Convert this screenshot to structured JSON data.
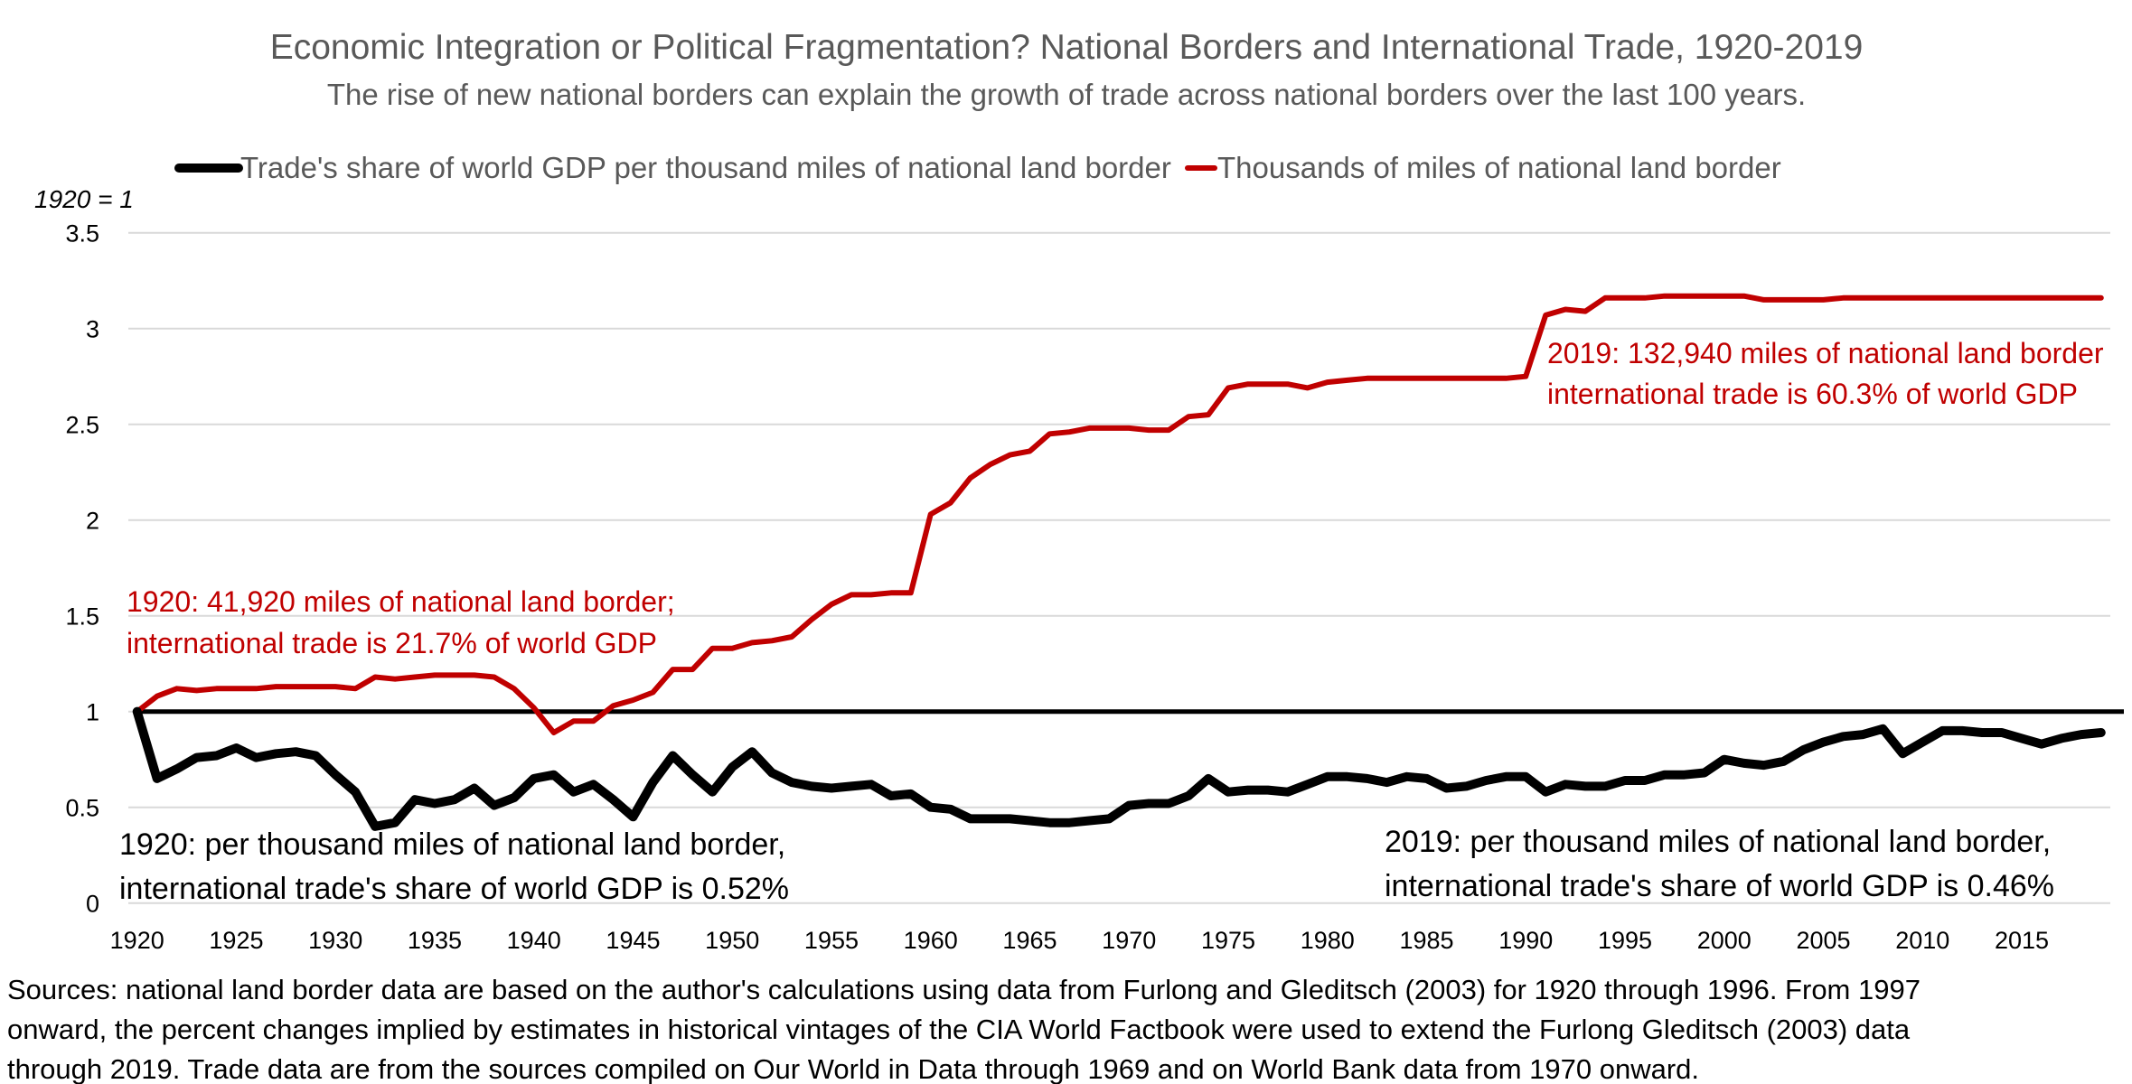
{
  "chart_data": {
    "type": "line",
    "title": "Economic Integration or Political Fragmentation? National Borders and International Trade, 1920-2019",
    "subtitle": "The rise of new national borders can explain the growth of trade across national borders over the last 100 years.",
    "ylabel": "1920 = 1",
    "xlabel": "",
    "ylim": [
      0,
      3.5
    ],
    "xlim": [
      1920,
      2019
    ],
    "y_ticks": [
      "0",
      "0.5",
      "1",
      "1.5",
      "2",
      "2.5",
      "3",
      "3.5"
    ],
    "y_tick_values": [
      0,
      0.5,
      1,
      1.5,
      2,
      2.5,
      3,
      3.5
    ],
    "x_ticks": [
      "1920",
      "1925",
      "1930",
      "1935",
      "1940",
      "1945",
      "1950",
      "1955",
      "1960",
      "1965",
      "1970",
      "1975",
      "1980",
      "1985",
      "1990",
      "1995",
      "2000",
      "2005",
      "2010",
      "2015"
    ],
    "grid": true,
    "legend_position": "top",
    "reference_line": {
      "value": 1,
      "color": "#000000"
    },
    "x": [
      1920,
      1921,
      1922,
      1923,
      1924,
      1925,
      1926,
      1927,
      1928,
      1929,
      1930,
      1931,
      1932,
      1933,
      1934,
      1935,
      1936,
      1937,
      1938,
      1939,
      1940,
      1941,
      1942,
      1943,
      1944,
      1945,
      1946,
      1947,
      1948,
      1949,
      1950,
      1951,
      1952,
      1953,
      1954,
      1955,
      1956,
      1957,
      1958,
      1959,
      1960,
      1961,
      1962,
      1963,
      1964,
      1965,
      1966,
      1967,
      1968,
      1969,
      1970,
      1971,
      1972,
      1973,
      1974,
      1975,
      1976,
      1977,
      1978,
      1979,
      1980,
      1981,
      1982,
      1983,
      1984,
      1985,
      1986,
      1987,
      1988,
      1989,
      1990,
      1991,
      1992,
      1993,
      1994,
      1995,
      1996,
      1997,
      1998,
      1999,
      2000,
      2001,
      2002,
      2003,
      2004,
      2005,
      2006,
      2007,
      2008,
      2009,
      2010,
      2011,
      2012,
      2013,
      2014,
      2015,
      2016,
      2017,
      2018,
      2019
    ],
    "series": [
      {
        "name": "Trade's share of world GDP per thousand miles of national land border",
        "color": "#000000",
        "values": [
          1.0,
          0.65,
          0.7,
          0.76,
          0.77,
          0.81,
          0.76,
          0.78,
          0.79,
          0.77,
          0.67,
          0.58,
          0.4,
          0.42,
          0.54,
          0.52,
          0.54,
          0.6,
          0.51,
          0.55,
          0.65,
          0.67,
          0.58,
          0.62,
          0.54,
          0.45,
          0.63,
          0.77,
          0.67,
          0.58,
          0.71,
          0.79,
          0.68,
          0.63,
          0.61,
          0.6,
          0.61,
          0.62,
          0.56,
          0.57,
          0.5,
          0.49,
          0.44,
          0.44,
          0.44,
          0.43,
          0.42,
          0.42,
          0.43,
          0.44,
          0.51,
          0.52,
          0.52,
          0.56,
          0.65,
          0.58,
          0.59,
          0.59,
          0.58,
          0.62,
          0.66,
          0.66,
          0.65,
          0.63,
          0.66,
          0.65,
          0.6,
          0.61,
          0.64,
          0.66,
          0.66,
          0.58,
          0.62,
          0.61,
          0.61,
          0.64,
          0.64,
          0.67,
          0.67,
          0.68,
          0.75,
          0.73,
          0.72,
          0.74,
          0.8,
          0.84,
          0.87,
          0.88,
          0.91,
          0.78,
          0.84,
          0.9,
          0.9,
          0.89,
          0.89,
          0.86,
          0.83,
          0.86,
          0.88,
          0.89
        ]
      },
      {
        "name": "Thousands of miles of national land border",
        "color": "#c00000",
        "values": [
          1.0,
          1.08,
          1.12,
          1.11,
          1.12,
          1.12,
          1.12,
          1.13,
          1.13,
          1.13,
          1.13,
          1.12,
          1.18,
          1.17,
          1.18,
          1.19,
          1.19,
          1.19,
          1.18,
          1.12,
          1.02,
          0.89,
          0.95,
          0.95,
          1.03,
          1.06,
          1.1,
          1.22,
          1.22,
          1.33,
          1.33,
          1.36,
          1.37,
          1.39,
          1.48,
          1.56,
          1.61,
          1.61,
          1.62,
          1.62,
          2.03,
          2.09,
          2.22,
          2.29,
          2.34,
          2.36,
          2.45,
          2.46,
          2.48,
          2.48,
          2.48,
          2.47,
          2.47,
          2.54,
          2.55,
          2.69,
          2.71,
          2.71,
          2.71,
          2.69,
          2.72,
          2.73,
          2.74,
          2.74,
          2.74,
          2.74,
          2.74,
          2.74,
          2.74,
          2.74,
          2.75,
          3.07,
          3.1,
          3.09,
          3.16,
          3.16,
          3.16,
          3.17,
          3.17,
          3.17,
          3.17,
          3.17,
          3.15,
          3.15,
          3.15,
          3.15,
          3.16,
          3.16,
          3.16,
          3.16,
          3.16,
          3.16,
          3.16,
          3.16,
          3.16,
          3.16,
          3.16,
          3.16,
          3.16,
          3.16
        ]
      }
    ],
    "annotations": {
      "red_1920": [
        "1920: 41,920 miles of national land border;",
        "international trade is 21.7% of world GDP"
      ],
      "red_2019": [
        "2019: 132,940 miles of national land border",
        "international trade is 60.3% of world GDP"
      ],
      "black_1920": [
        "1920: per thousand miles of national land border,",
        "international trade's share of world GDP is 0.52%"
      ],
      "black_2019": [
        "2019: per thousand miles of national land border,",
        "international trade's share of world  GDP is 0.46%"
      ]
    },
    "source_note": [
      "Sources: national land border data are based on the author's calculations using data from Furlong and Gleditsch (2003) for 1920 through 1996. From 1997",
      "onward, the percent changes implied by estimates in historical vintages of the CIA World Factbook were used to extend the Furlong Gleditsch (2003) data",
      "through 2019. Trade data are from the sources compiled on Our World in Data through 1969 and on World Bank data from 1970 onward."
    ]
  }
}
